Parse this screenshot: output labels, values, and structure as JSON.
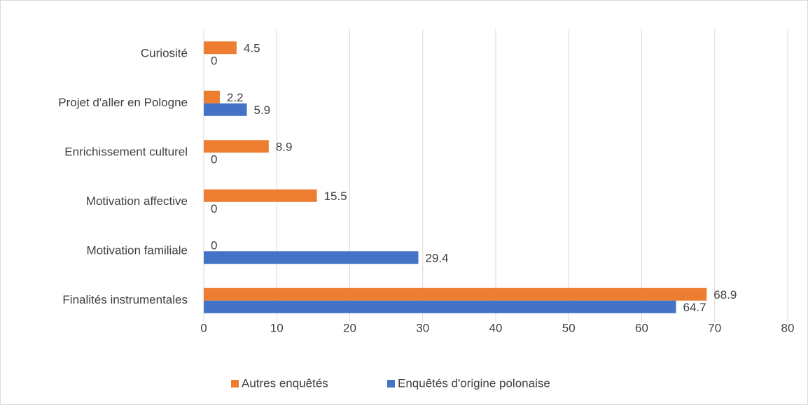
{
  "chart_data": {
    "type": "bar",
    "orientation": "horizontal",
    "categories": [
      "Curiosité",
      "Projet d'aller en Pologne",
      "Enrichissement culturel",
      "Motivation affective",
      "Motivation familiale",
      "Finalités instrumentales"
    ],
    "series": [
      {
        "name": "Autres enquêtés",
        "color": "#ED7D31",
        "values": [
          4.5,
          2.2,
          8.9,
          15.5,
          0,
          68.9
        ]
      },
      {
        "name": "Enquêtés d'origine polonaise",
        "color": "#4472C4",
        "values": [
          0,
          5.9,
          0,
          0,
          29.4,
          64.7
        ]
      }
    ],
    "xlim": [
      0,
      80
    ],
    "xticks": [
      0,
      10,
      20,
      30,
      40,
      50,
      60,
      70,
      80
    ],
    "grid": true,
    "legend": "bottom"
  }
}
